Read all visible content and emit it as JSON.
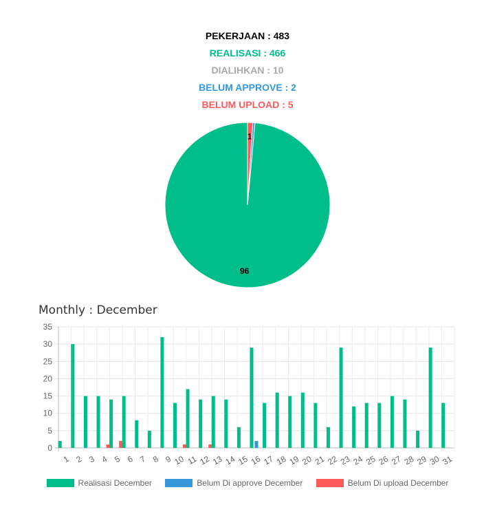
{
  "summary": {
    "pekerjaan": "PEKERJAAN : 483",
    "realisasi": "REALISASI : 466",
    "dialihkan": "DIALIHKAN : 10",
    "belum_approve": "BELUM APPROVE : 2",
    "belum_upload": "BELUM UPLOAD : 5"
  },
  "colors": {
    "black": "#000000",
    "green": "#00be8a",
    "gray": "#aaaaaa",
    "blue": "#3598db",
    "red": "#ff5a5a"
  },
  "monthly_title": "Monthly : December",
  "chart_data": [
    {
      "type": "pie",
      "slices": [
        {
          "label": "Realisasi",
          "value": 96,
          "color": "#00be8a",
          "data_label": "96"
        },
        {
          "label": "Belum Upload",
          "value": 1,
          "color": "#ff5a5a",
          "data_label": "1"
        },
        {
          "label": "Belum Approve",
          "value": 0.4,
          "color": "#3598db",
          "data_label": ""
        }
      ]
    },
    {
      "type": "bar",
      "title": "Monthly : December",
      "categories": [
        "1",
        "2",
        "3",
        "4",
        "5",
        "6",
        "7",
        "8",
        "9",
        "10",
        "11",
        "12",
        "13",
        "14",
        "15",
        "16",
        "17",
        "18",
        "19",
        "20",
        "21",
        "22",
        "23",
        "24",
        "25",
        "26",
        "27",
        "28",
        "29",
        "30",
        "31"
      ],
      "ylim": [
        0,
        35
      ],
      "yticks": [
        0,
        5,
        10,
        15,
        20,
        25,
        30,
        35
      ],
      "grid": true,
      "legend_position": "bottom",
      "series": [
        {
          "name": "Realisasi December",
          "color": "#00be8a",
          "values": [
            2,
            30,
            15,
            15,
            14,
            15,
            8,
            5,
            32,
            13,
            17,
            14,
            15,
            14,
            6,
            29,
            13,
            16,
            15,
            16,
            13,
            6,
            29,
            12,
            13,
            13,
            15,
            14,
            5,
            29,
            13
          ]
        },
        {
          "name": "Belum Di approve December",
          "color": "#3598db",
          "values": [
            0,
            0,
            0,
            0,
            0,
            0,
            0,
            0,
            0,
            0,
            0,
            0,
            0,
            0,
            0,
            2,
            0,
            0,
            0,
            0,
            0,
            0,
            0,
            0,
            0,
            0,
            0,
            0,
            0,
            0,
            0
          ]
        },
        {
          "name": "Belum Di upload December",
          "color": "#ff5a5a",
          "values": [
            0,
            0,
            0,
            1,
            2,
            0,
            0,
            0,
            0,
            1,
            0,
            1,
            0,
            0,
            0,
            0,
            0,
            0,
            0,
            0,
            0,
            0,
            0,
            0,
            0,
            0,
            0,
            0,
            0,
            0,
            0
          ]
        }
      ]
    }
  ]
}
